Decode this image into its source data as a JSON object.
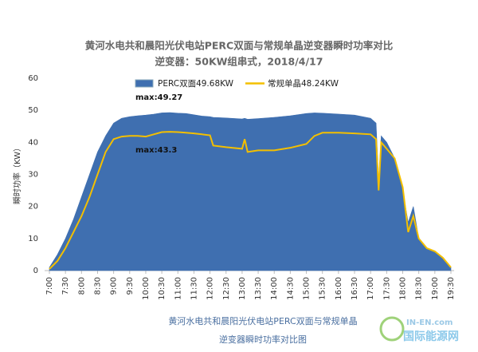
{
  "chart_data": {
    "type": "area",
    "title": "黄河水电共和晨阳光伏电站PERC双面与常规单晶逆变器瞬时功率对比",
    "subtitle": "逆变器：50KW组串式，2018/4/17",
    "y_label": "瞬时功率（KW）",
    "caption": [
      "黄河水电共和晨阳光伏电站PERC双面与常规单晶",
      "逆变器瞬时功率对比图"
    ],
    "watermark": [
      "IN-EN.com",
      "国际能源网"
    ],
    "annotations": [
      "max:49.27",
      "max:43.3"
    ],
    "x": [
      7,
      7.25,
      7.5,
      7.75,
      8,
      8.25,
      8.5,
      8.75,
      9,
      9.25,
      9.5,
      9.75,
      10,
      10.25,
      10.5,
      10.75,
      11,
      11.25,
      11.5,
      11.75,
      12,
      12.1,
      12.5,
      13,
      13.08,
      13.17,
      13.5,
      14,
      14.5,
      15,
      15.25,
      15.5,
      16,
      16.5,
      17,
      17.17,
      17.25,
      17.33,
      17.5,
      17.75,
      18,
      18.17,
      18.33,
      18.5,
      18.75,
      19,
      19.25,
      19.5
    ],
    "series": [
      {
        "name": "PERC双面49.68KW",
        "type": "area",
        "color": "#3f6fb0",
        "values": [
          1,
          5,
          10,
          16,
          23,
          30,
          37,
          42,
          46,
          47.5,
          48,
          48.3,
          48.5,
          48.8,
          49.2,
          49.27,
          49.1,
          49,
          48.6,
          48.2,
          48,
          47.8,
          47.6,
          47.3,
          47.5,
          47.2,
          47.4,
          47.8,
          48.3,
          49,
          49.2,
          49.1,
          48.8,
          48.5,
          47.5,
          46,
          28,
          42,
          40,
          35,
          25,
          15,
          20,
          10,
          7,
          6,
          4,
          1
        ]
      },
      {
        "name": "常规单晶48.24KW",
        "type": "line",
        "color": "#f3bf00",
        "values": [
          0.5,
          3,
          7,
          12,
          17,
          23,
          30,
          37,
          41,
          41.8,
          42,
          42,
          41.8,
          42.5,
          43.2,
          43.3,
          43.2,
          43,
          42.8,
          42.5,
          42.2,
          39,
          38.5,
          38,
          41,
          37,
          37.5,
          37.5,
          38.3,
          39.5,
          42,
          43,
          43,
          42.8,
          42.5,
          41,
          25,
          40,
          38,
          35,
          26,
          12,
          17,
          10,
          7,
          6,
          4,
          1
        ]
      }
    ],
    "xlim": [
      7,
      19.5
    ],
    "xticks": [
      {
        "value": 7,
        "label": "7:00"
      },
      {
        "value": 7.5,
        "label": "7:30"
      },
      {
        "value": 8,
        "label": "8:00"
      },
      {
        "value": 8.5,
        "label": "8:30"
      },
      {
        "value": 9,
        "label": "9:00"
      },
      {
        "value": 9.5,
        "label": "9:30"
      },
      {
        "value": 10,
        "label": "10:00"
      },
      {
        "value": 10.5,
        "label": "10:30"
      },
      {
        "value": 11,
        "label": "11:00"
      },
      {
        "value": 11.5,
        "label": "11:30"
      },
      {
        "value": 12,
        "label": "12:00"
      },
      {
        "value": 12.5,
        "label": "12:30"
      },
      {
        "value": 13,
        "label": "13:00"
      },
      {
        "value": 13.5,
        "label": "13:30"
      },
      {
        "value": 14,
        "label": "14:00"
      },
      {
        "value": 14.5,
        "label": "14:30"
      },
      {
        "value": 15,
        "label": "15:00"
      },
      {
        "value": 15.5,
        "label": "15:30"
      },
      {
        "value": 16,
        "label": "16:00"
      },
      {
        "value": 16.5,
        "label": "16:30"
      },
      {
        "value": 17,
        "label": "17:00"
      },
      {
        "value": 17.5,
        "label": "17:30"
      },
      {
        "value": 18,
        "label": "18:00"
      },
      {
        "value": 18.5,
        "label": "18:30"
      },
      {
        "value": 19,
        "label": "19:00"
      },
      {
        "value": 19.5,
        "label": "19:30"
      }
    ],
    "ylim": [
      0,
      60
    ],
    "yticks": [
      0,
      10,
      20,
      30,
      40,
      50,
      60
    ],
    "grid": false
  }
}
